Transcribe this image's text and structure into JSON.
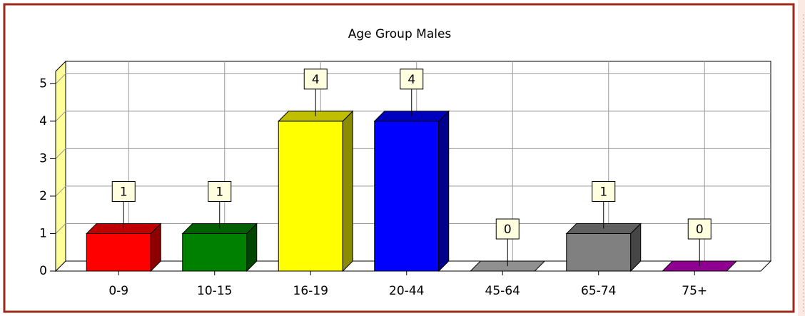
{
  "chart_data": {
    "type": "bar3d",
    "title": "Age Group Males",
    "categories": [
      "0-9",
      "10-15",
      "16-19",
      "20-44",
      "45-64",
      "65-74",
      "75+"
    ],
    "values": [
      1,
      1,
      4,
      4,
      0,
      1,
      0
    ],
    "colors": [
      "#ff0000",
      "#008000",
      "#ffff00",
      "#0000ff",
      "#c0c0c0",
      "#808080",
      "#c000c0"
    ],
    "ylim": [
      0,
      5.33
    ],
    "yticks": [
      0,
      1,
      2,
      3,
      4,
      5
    ],
    "grid": true
  }
}
